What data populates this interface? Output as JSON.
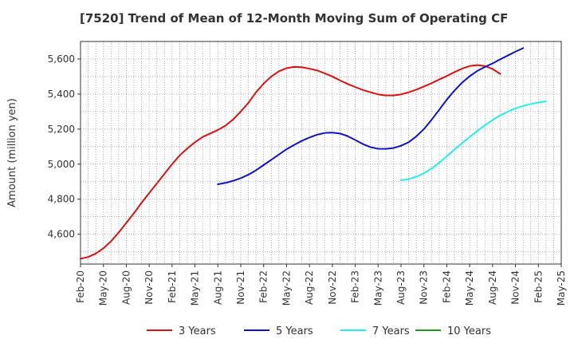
{
  "chart_data": {
    "type": "line",
    "title": "[7520]  Trend of Mean of 12-Month Moving Sum of Operating CF",
    "xlabel": "",
    "ylabel": "Amount (million yen)",
    "ylim": [
      4430,
      5700
    ],
    "yticks": [
      4600,
      4800,
      5000,
      5200,
      5400,
      5600
    ],
    "ytick_labels": [
      "4,600",
      "4,800",
      "5,000",
      "5,200",
      "5,400",
      "5,600"
    ],
    "x_start": "Feb-20",
    "x_end": "May-25",
    "xtick_labels": [
      "Feb-20",
      "May-20",
      "Aug-20",
      "Nov-20",
      "Feb-21",
      "May-21",
      "Aug-21",
      "Nov-21",
      "Feb-22",
      "May-22",
      "Aug-22",
      "Nov-22",
      "Feb-23",
      "May-23",
      "Aug-23",
      "Nov-23",
      "Feb-24",
      "May-24",
      "Aug-24",
      "Nov-24",
      "Feb-25",
      "May-25"
    ],
    "grid": true,
    "legend_position": "bottom",
    "series": [
      {
        "name": "3 Years",
        "color": "#dd1111",
        "start_month_index": 0,
        "values": [
          4460,
          4470,
          4490,
          4520,
          4560,
          4610,
          4665,
          4720,
          4780,
          4835,
          4890,
          4945,
          5000,
          5050,
          5090,
          5125,
          5155,
          5175,
          5195,
          5220,
          5255,
          5300,
          5350,
          5410,
          5460,
          5500,
          5530,
          5548,
          5555,
          5553,
          5545,
          5535,
          5518,
          5500,
          5478,
          5458,
          5440,
          5423,
          5410,
          5398,
          5392,
          5392,
          5398,
          5410,
          5425,
          5443,
          5462,
          5483,
          5503,
          5525,
          5545,
          5560,
          5565,
          5560,
          5543,
          5515
        ]
      },
      {
        "name": "5 Years",
        "color": "#1111cc",
        "start_month_index": 18,
        "values": [
          4885,
          4893,
          4905,
          4920,
          4940,
          4965,
          4995,
          5025,
          5055,
          5085,
          5110,
          5133,
          5152,
          5168,
          5178,
          5180,
          5175,
          5160,
          5138,
          5115,
          5097,
          5088,
          5087,
          5092,
          5105,
          5125,
          5158,
          5200,
          5253,
          5310,
          5368,
          5420,
          5465,
          5502,
          5532,
          5555,
          5575,
          5598,
          5620,
          5642,
          5662
        ]
      },
      {
        "name": "7 Years",
        "color": "#22eeee",
        "start_month_index": 42,
        "values": [
          4908,
          4915,
          4928,
          4948,
          4975,
          5008,
          5045,
          5083,
          5120,
          5155,
          5190,
          5222,
          5252,
          5278,
          5300,
          5318,
          5332,
          5343,
          5352,
          5358
        ]
      },
      {
        "name": "10 Years",
        "color": "#229922",
        "start_month_index": null,
        "values": []
      }
    ]
  }
}
